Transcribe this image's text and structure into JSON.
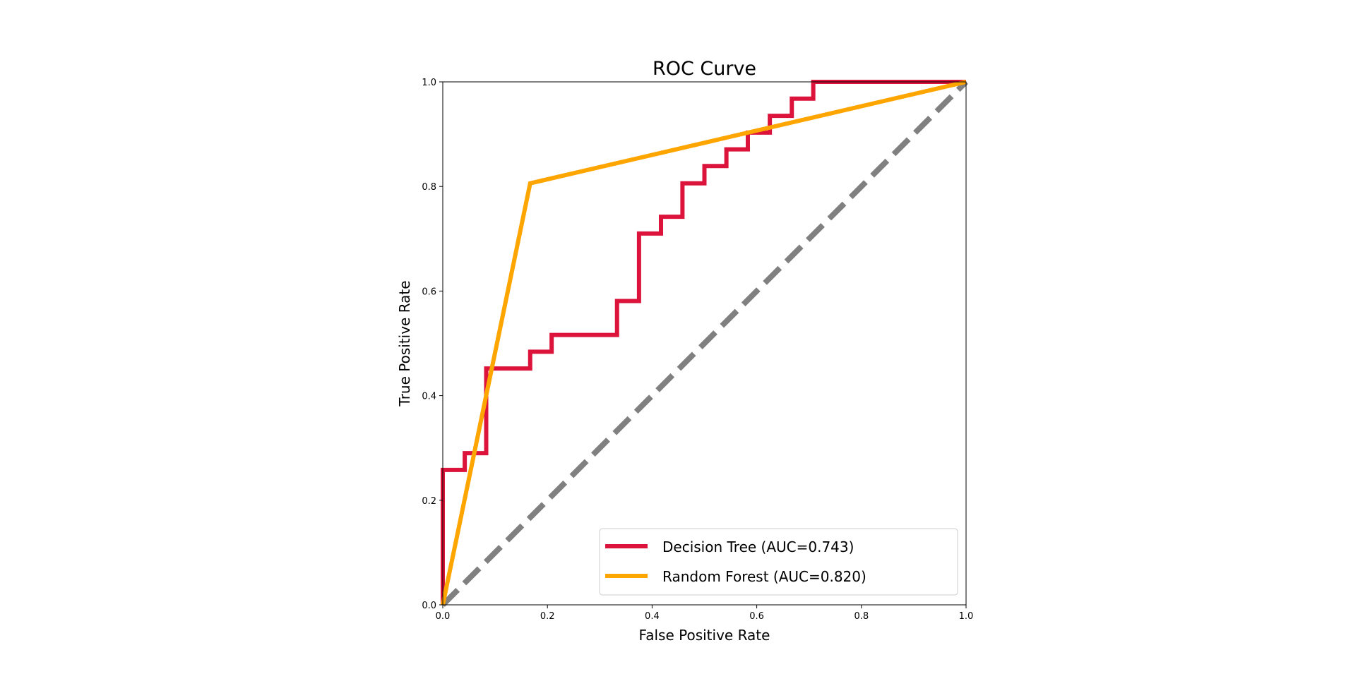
{
  "chart_data": {
    "type": "line",
    "title": "ROC Curve",
    "xlabel": "False Positive Rate",
    "ylabel": "True Positive Rate",
    "xlim": [
      0,
      1
    ],
    "ylim": [
      0,
      1
    ],
    "xticks": [
      0.0,
      0.2,
      0.4,
      0.6,
      0.8,
      1.0
    ],
    "yticks": [
      0.0,
      0.2,
      0.4,
      0.6,
      0.8,
      1.0
    ],
    "xtick_labels": [
      "0.0",
      "0.2",
      "0.4",
      "0.6",
      "0.8",
      "1.0"
    ],
    "ytick_labels": [
      "0.0",
      "0.2",
      "0.4",
      "0.6",
      "0.8",
      "1.0"
    ],
    "grid": false,
    "legend_position": "lower-right",
    "series": [
      {
        "name": "Decision Tree (AUC=0.743)",
        "color": "#dc143c",
        "line_style": "solid",
        "x": [
          0,
          0,
          0.042,
          0.042,
          0.083,
          0.083,
          0.167,
          0.167,
          0.208,
          0.208,
          0.333,
          0.333,
          0.375,
          0.375,
          0.417,
          0.417,
          0.458,
          0.458,
          0.5,
          0.5,
          0.542,
          0.542,
          0.583,
          0.583,
          0.625,
          0.625,
          0.667,
          0.667,
          0.708,
          0.708,
          1.0
        ],
        "y": [
          0,
          0.258,
          0.258,
          0.29,
          0.29,
          0.452,
          0.452,
          0.484,
          0.484,
          0.516,
          0.516,
          0.581,
          0.581,
          0.71,
          0.71,
          0.742,
          0.742,
          0.806,
          0.806,
          0.839,
          0.839,
          0.871,
          0.871,
          0.903,
          0.903,
          0.935,
          0.935,
          0.968,
          0.968,
          1.0,
          1.0
        ]
      },
      {
        "name": "Random Forest (AUC=0.820)",
        "color": "#ffa500",
        "line_style": "solid",
        "x": [
          0,
          0.167,
          1.0
        ],
        "y": [
          0,
          0.806,
          1.0
        ]
      },
      {
        "color": "#808080",
        "line_style": "dashed",
        "x": [
          0,
          1
        ],
        "y": [
          0,
          1
        ]
      }
    ]
  }
}
